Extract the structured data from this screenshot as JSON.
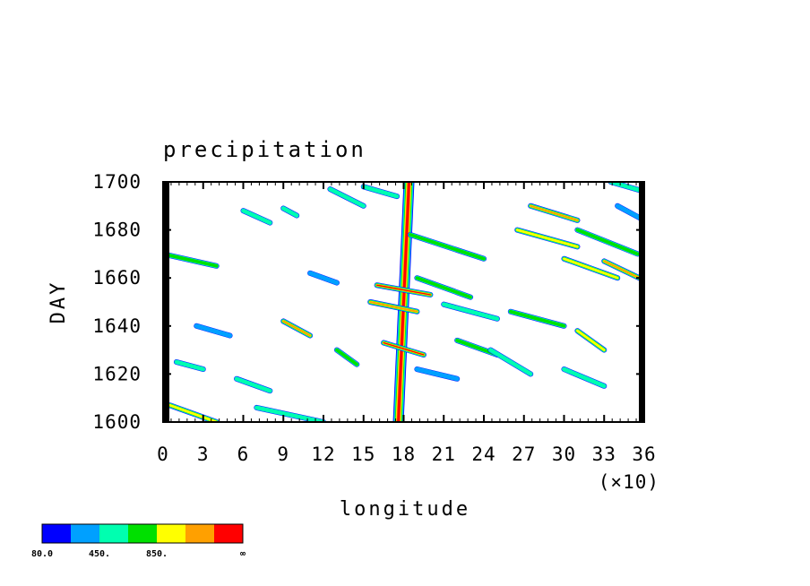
{
  "chart_data": {
    "type": "heatmap",
    "title": "precipitation",
    "xlabel": "longitude",
    "ylabel": "DAY",
    "x_multiplier_label": "(×10)",
    "xlim": [
      0,
      36
    ],
    "ylim": [
      1600,
      1700
    ],
    "x_ticks": [
      "0",
      "3",
      "6",
      "9",
      "12",
      "15",
      "18",
      "21",
      "24",
      "27",
      "30",
      "33",
      "36"
    ],
    "y_ticks": [
      "1600",
      "1620",
      "1640",
      "1660",
      "1680",
      "1700"
    ],
    "colorbar": {
      "colors": [
        "#0000ff",
        "#00a0ff",
        "#00ffb0",
        "#00e000",
        "#ffff00",
        "#ffa000",
        "#ff0000"
      ],
      "tick_labels": [
        "80.0",
        "450.",
        "850.",
        "∞"
      ]
    },
    "features": [
      {
        "x0": 17.6,
        "x1": 18.4,
        "y0": 1600,
        "y1": 1700,
        "level": 7
      },
      {
        "x0": 0,
        "x1": 4,
        "y0": 1670,
        "y1": 1665,
        "level": 4
      },
      {
        "x0": 9,
        "x1": 11,
        "y0": 1642,
        "y1": 1636,
        "level": 6
      },
      {
        "x0": 12.5,
        "x1": 15,
        "y0": 1697,
        "y1": 1690,
        "level": 3
      },
      {
        "x0": 18.5,
        "x1": 24,
        "y0": 1678,
        "y1": 1668,
        "level": 4
      },
      {
        "x0": 19,
        "x1": 23,
        "y0": 1660,
        "y1": 1652,
        "level": 4
      },
      {
        "x0": 27.5,
        "x1": 31,
        "y0": 1690,
        "y1": 1684,
        "level": 6
      },
      {
        "x0": 26.5,
        "x1": 31,
        "y0": 1680,
        "y1": 1673,
        "level": 5
      },
      {
        "x0": 30,
        "x1": 34,
        "y0": 1668,
        "y1": 1660,
        "level": 5
      },
      {
        "x0": 33,
        "x1": 36,
        "y0": 1667,
        "y1": 1659,
        "level": 6
      },
      {
        "x0": 31,
        "x1": 35.5,
        "y0": 1680,
        "y1": 1670,
        "level": 4
      },
      {
        "x0": 33.5,
        "x1": 36,
        "y0": 1700,
        "y1": 1696,
        "level": 3
      },
      {
        "x0": 26,
        "x1": 30,
        "y0": 1646,
        "y1": 1640,
        "level": 4
      },
      {
        "x0": 31,
        "x1": 33,
        "y0": 1638,
        "y1": 1630,
        "level": 5
      },
      {
        "x0": 22,
        "x1": 25,
        "y0": 1634,
        "y1": 1628,
        "level": 4
      },
      {
        "x0": 13,
        "x1": 14.5,
        "y0": 1630,
        "y1": 1624,
        "level": 4
      },
      {
        "x0": 0.5,
        "x1": 4,
        "y0": 1607,
        "y1": 1600,
        "level": 5
      },
      {
        "x0": 7,
        "x1": 12,
        "y0": 1606,
        "y1": 1600,
        "level": 3
      },
      {
        "x0": 24.5,
        "x1": 27.5,
        "y0": 1630,
        "y1": 1620,
        "level": 3
      },
      {
        "x0": 1,
        "x1": 3,
        "y0": 1625,
        "y1": 1622,
        "level": 3
      },
      {
        "x0": 5.5,
        "x1": 8,
        "y0": 1618,
        "y1": 1613,
        "level": 3
      },
      {
        "x0": 30,
        "x1": 33,
        "y0": 1622,
        "y1": 1615,
        "level": 3
      },
      {
        "x0": 16,
        "x1": 20,
        "y0": 1657,
        "y1": 1653,
        "level": 7
      },
      {
        "x0": 16.5,
        "x1": 19.5,
        "y0": 1633,
        "y1": 1628,
        "level": 7
      },
      {
        "x0": 15.5,
        "x1": 19,
        "y0": 1650,
        "y1": 1646,
        "level": 6
      },
      {
        "x0": 21,
        "x1": 25,
        "y0": 1649,
        "y1": 1643,
        "level": 3
      },
      {
        "x0": 6,
        "x1": 8,
        "y0": 1688,
        "y1": 1683,
        "level": 3
      },
      {
        "x0": 9,
        "x1": 10,
        "y0": 1689,
        "y1": 1686,
        "level": 3
      },
      {
        "x0": 11,
        "x1": 13,
        "y0": 1662,
        "y1": 1658,
        "level": 2
      },
      {
        "x0": 2.5,
        "x1": 5,
        "y0": 1640,
        "y1": 1636,
        "level": 2
      },
      {
        "x0": 34,
        "x1": 36,
        "y0": 1690,
        "y1": 1684,
        "level": 2
      },
      {
        "x0": 15,
        "x1": 17.5,
        "y0": 1698,
        "y1": 1694,
        "level": 3
      },
      {
        "x0": 19,
        "x1": 22,
        "y0": 1622,
        "y1": 1618,
        "level": 2
      }
    ]
  }
}
